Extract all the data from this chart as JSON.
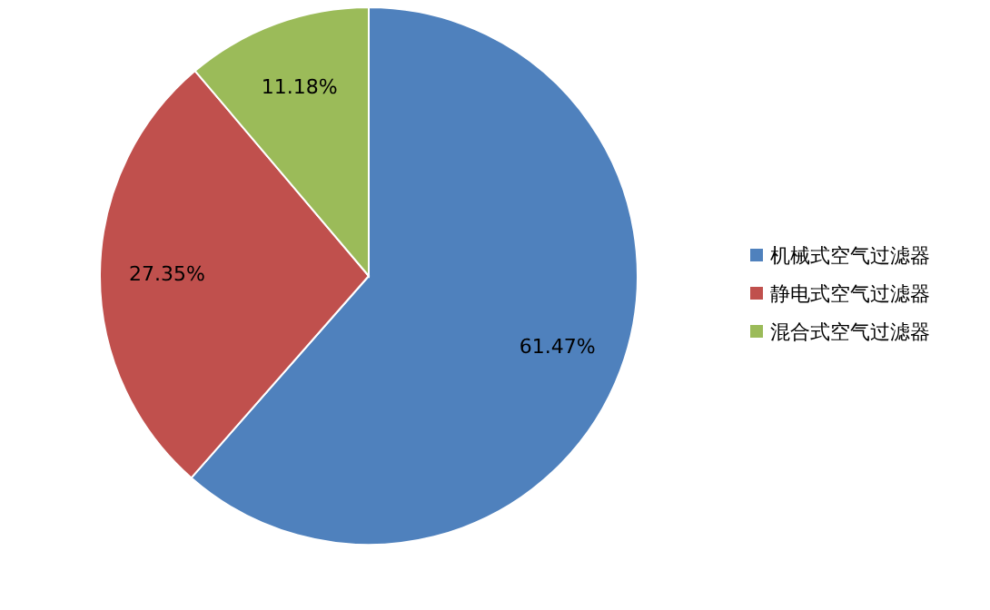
{
  "chart_data": {
    "type": "pie",
    "categories": [
      "机械式空气过滤器",
      "静电式空气过滤器",
      "混合式空气过滤器"
    ],
    "values": [
      61.47,
      27.35,
      11.18
    ],
    "value_labels": [
      "61.47%",
      "27.35%",
      "11.18%"
    ],
    "colors": [
      "#4f81bd",
      "#c0504d",
      "#9bbb59"
    ],
    "legend": "right"
  }
}
